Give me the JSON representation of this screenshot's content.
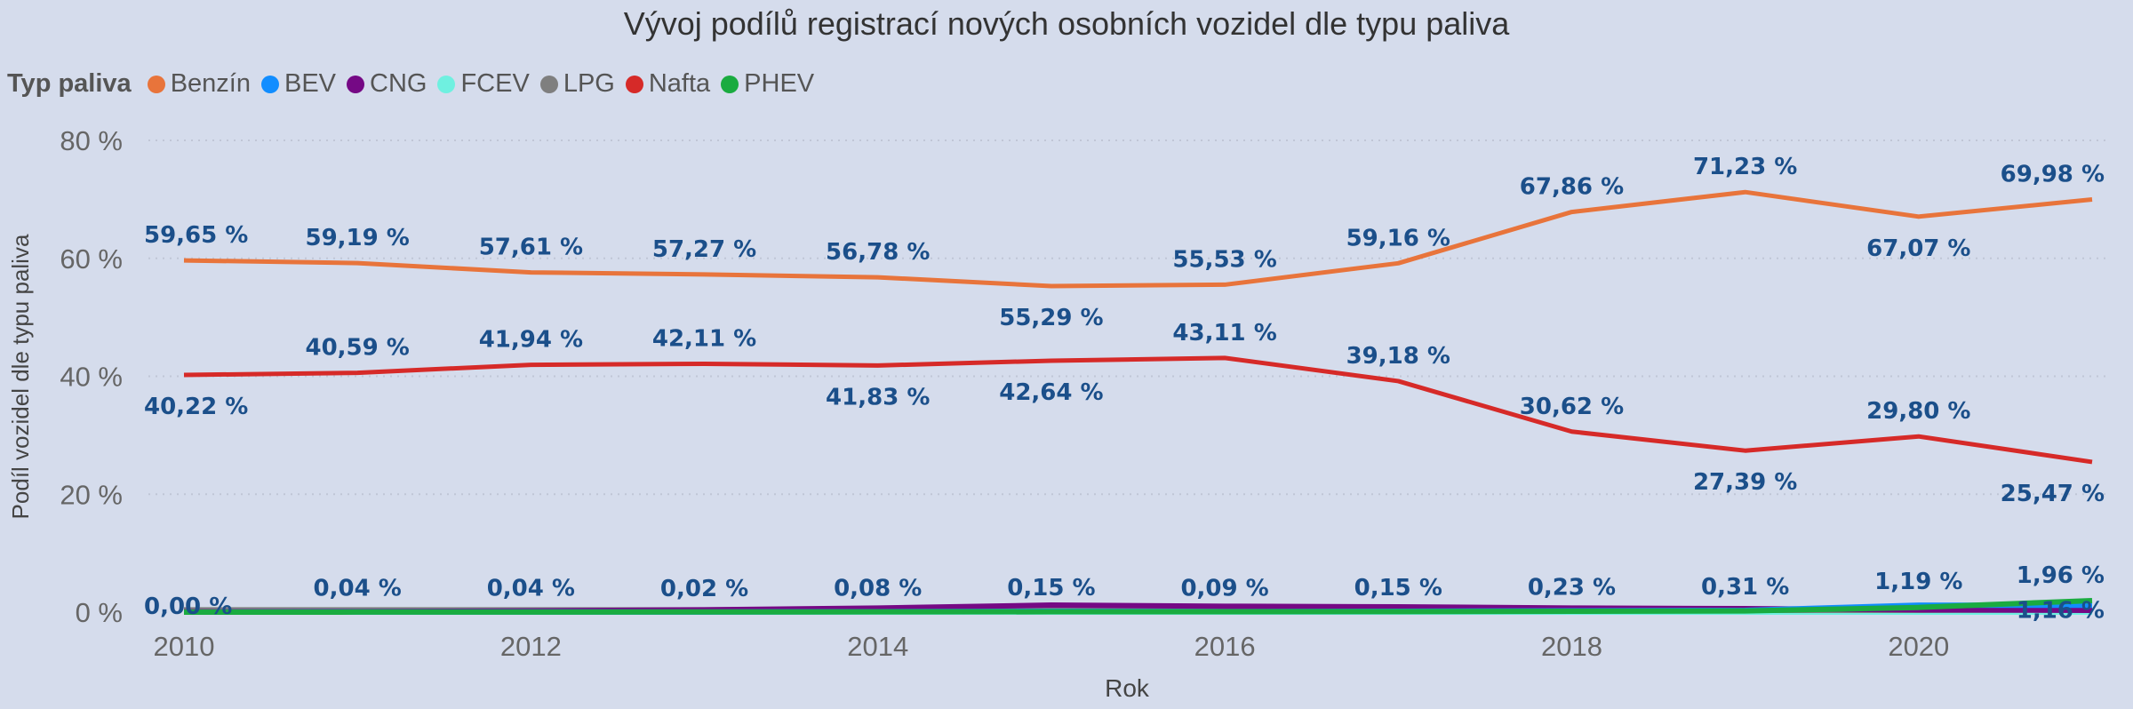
{
  "chart_data": {
    "type": "line",
    "title": "Vývoj podílů registrací nových osobních vozidel dle typu paliva",
    "xlabel": "Rok",
    "ylabel": "Podíl vozidel dle typu paliva",
    "legend_title": "Typ paliva",
    "legend_position": "top-left",
    "grid": true,
    "ylim": [
      0,
      80
    ],
    "xlim": [
      2010,
      2021
    ],
    "yticks": [
      "0 %",
      "20 %",
      "40 %",
      "60 %",
      "80 %"
    ],
    "xticks": [
      "2010",
      "2012",
      "2014",
      "2016",
      "2018",
      "2020"
    ],
    "x": [
      2010,
      2011,
      2012,
      2013,
      2014,
      2015,
      2016,
      2017,
      2018,
      2019,
      2020,
      2021
    ],
    "series": [
      {
        "name": "Benzín",
        "color": "#E8743B",
        "values": [
          59.65,
          59.19,
          57.61,
          57.27,
          56.78,
          55.29,
          55.53,
          59.16,
          67.86,
          71.23,
          67.07,
          69.98
        ],
        "labels": [
          "59,65 %",
          "59,19 %",
          "57,61 %",
          "57,27 %",
          "56,78 %",
          "55,29 %",
          "55,53 %",
          "59,16 %",
          "67,86 %",
          "71,23 %",
          "67,07 %",
          "69,98 %"
        ]
      },
      {
        "name": "BEV",
        "color": "#118DFF",
        "values": [
          0.0,
          0.04,
          0.04,
          0.02,
          0.08,
          0.15,
          0.09,
          0.15,
          0.23,
          0.31,
          1.19,
          1.16
        ],
        "labels": [
          "0,00 %",
          "0,04 %",
          "0,04 %",
          "0,02 %",
          "0,08 %",
          "0,15 %",
          "0,09 %",
          "0,15 %",
          "0,23 %",
          "0,31 %",
          "1,19 %",
          "1,16 %"
        ]
      },
      {
        "name": "CNG",
        "color": "#750985",
        "values": [
          0.05,
          0.1,
          0.2,
          0.4,
          0.7,
          1.2,
          1.0,
          0.9,
          0.7,
          0.6,
          0.4,
          0.3
        ]
      },
      {
        "name": "FCEV",
        "color": "#6FF0E0",
        "values": [
          0,
          0,
          0,
          0,
          0,
          0,
          0,
          0,
          0,
          0,
          0,
          0
        ]
      },
      {
        "name": "LPG",
        "color": "#7F7F7F",
        "values": [
          0.4,
          0.4,
          0.4,
          0.4,
          0.5,
          0.5,
          0.4,
          0.4,
          0.4,
          0.3,
          0.3,
          0.4
        ]
      },
      {
        "name": "Nafta",
        "color": "#D62A28",
        "values": [
          40.22,
          40.59,
          41.94,
          42.11,
          41.83,
          42.64,
          43.11,
          39.18,
          30.62,
          27.39,
          29.8,
          25.47
        ],
        "labels": [
          "40,22 %",
          "40,59 %",
          "41,94 %",
          "42,11 %",
          "41,83 %",
          "42,64 %",
          "43,11 %",
          "39,18 %",
          "30,62 %",
          "27,39 %",
          "29,80 %",
          "25,47 %"
        ]
      },
      {
        "name": "PHEV",
        "color": "#1AAB40",
        "values": [
          0,
          0.01,
          0.02,
          0.03,
          0.05,
          0.07,
          0.08,
          0.1,
          0.15,
          0.2,
          0.8,
          1.96
        ],
        "labels": [
          "",
          "",
          "",
          "",
          "",
          "",
          "",
          "",
          "",
          "",
          "",
          "1,96 %"
        ]
      }
    ]
  }
}
